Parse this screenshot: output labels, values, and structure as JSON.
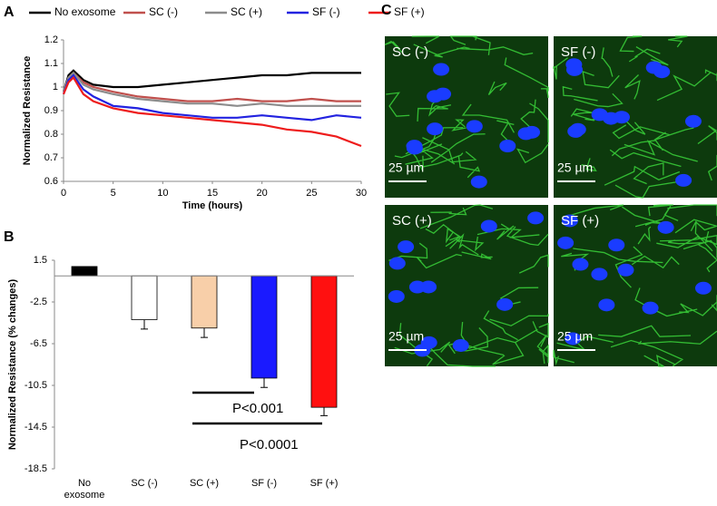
{
  "chart_data": [
    {
      "type": "line",
      "panel_label": "A",
      "y_label": "Normalized Resistance",
      "x_label": "Time (hours)",
      "x": [
        0,
        0.5,
        1,
        2,
        3,
        5,
        7.5,
        10,
        12.5,
        15,
        17.5,
        20,
        22.5,
        25,
        27.5,
        30
      ],
      "xlim": [
        0,
        30
      ],
      "xticks": [
        0,
        5,
        10,
        15,
        20,
        25,
        30
      ],
      "ylim": [
        0.6,
        1.2
      ],
      "yticks": [
        0.6,
        0.7,
        0.8,
        0.9,
        1,
        1.1,
        1.2
      ],
      "series": [
        {
          "name": "No exosome",
          "color": "#000000",
          "values": [
            0.98,
            1.05,
            1.07,
            1.03,
            1.01,
            1.0,
            1.0,
            1.01,
            1.02,
            1.03,
            1.04,
            1.05,
            1.05,
            1.06,
            1.06,
            1.06
          ]
        },
        {
          "name": "SC (-)",
          "color": "#c0504d",
          "values": [
            0.98,
            1.04,
            1.06,
            1.02,
            1.0,
            0.98,
            0.96,
            0.95,
            0.94,
            0.94,
            0.95,
            0.94,
            0.94,
            0.95,
            0.94,
            0.94
          ]
        },
        {
          "name": "SC (+)",
          "color": "#8c8c8c",
          "values": [
            0.98,
            1.04,
            1.06,
            1.01,
            0.99,
            0.97,
            0.95,
            0.94,
            0.93,
            0.93,
            0.92,
            0.93,
            0.92,
            0.92,
            0.92,
            0.92
          ]
        },
        {
          "name": "SF (-)",
          "color": "#2222e0",
          "values": [
            0.97,
            1.03,
            1.05,
            0.99,
            0.96,
            0.92,
            0.91,
            0.89,
            0.88,
            0.87,
            0.87,
            0.88,
            0.87,
            0.86,
            0.88,
            0.87
          ]
        },
        {
          "name": "SF (+)",
          "color": "#ee1c1c",
          "values": [
            0.97,
            1.02,
            1.04,
            0.97,
            0.94,
            0.91,
            0.89,
            0.88,
            0.87,
            0.86,
            0.85,
            0.84,
            0.82,
            0.81,
            0.79,
            0.75
          ]
        }
      ]
    },
    {
      "type": "bar",
      "panel_label": "B",
      "y_label": "Normalized Resistance (% changes)",
      "categories": [
        [
          "No",
          "exosome"
        ],
        "SC (-)",
        "SC (+)",
        "SF (-)",
        "SF (+)"
      ],
      "values": [
        0.9,
        -4.2,
        -5.0,
        -9.8,
        -12.6
      ],
      "errors": [
        0,
        0.9,
        0.9,
        0.9,
        0.8
      ],
      "colors": [
        "#000000",
        "#ffffff",
        "#f8cfa9",
        "#1a1aff",
        "#ff1010"
      ],
      "ylim": [
        -18.5,
        1.5
      ],
      "yticks": [
        -18.5,
        -14.5,
        -10.5,
        -6.5,
        -2.5,
        1.5
      ],
      "annotations": [
        "P<0.001",
        "P<0.0001"
      ]
    }
  ],
  "panel_c": {
    "label": "C",
    "images": [
      {
        "label": "SC (-)",
        "scale": "25 µm"
      },
      {
        "label": "SF (-)",
        "scale": "25 µm"
      },
      {
        "label": "SC (+)",
        "scale": "25 µm"
      },
      {
        "label": "SF (+)",
        "scale": "25 µm"
      }
    ]
  }
}
